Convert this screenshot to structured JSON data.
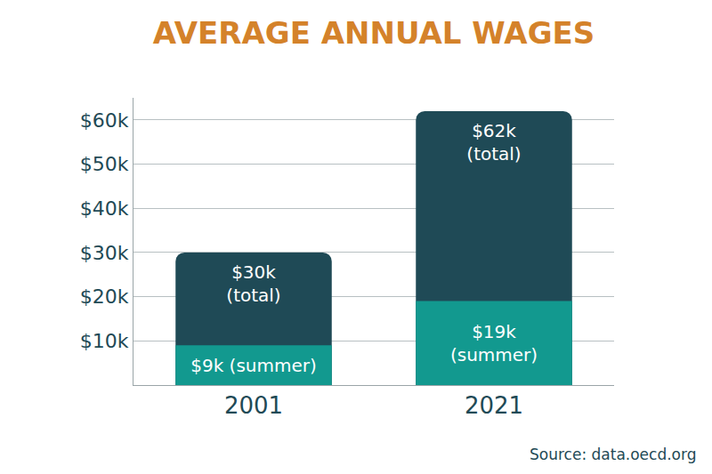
{
  "chart_data": {
    "type": "bar",
    "title": "AVERAGE ANNUAL WAGES",
    "categories": [
      "2001",
      "2021"
    ],
    "stacked": false,
    "series": [
      {
        "name": "total",
        "color": "#1f4a56",
        "values": [
          30,
          62
        ],
        "value_labels": [
          "$30k\n(total)",
          "$62k\n(total)"
        ]
      },
      {
        "name": "summer",
        "color": "#12998f",
        "values": [
          9,
          19
        ],
        "value_labels": [
          "$9k (summer)",
          "$19k\n(summer)"
        ]
      }
    ],
    "ylim": [
      0,
      65
    ],
    "yticks": [
      {
        "value": 10,
        "label": "$10k"
      },
      {
        "value": 20,
        "label": "$20k"
      },
      {
        "value": 30,
        "label": "$30k"
      },
      {
        "value": 40,
        "label": "$40k"
      },
      {
        "value": 50,
        "label": "$50k"
      },
      {
        "value": 60,
        "label": "$60k"
      }
    ],
    "grid": true,
    "data_labels": true,
    "annotations": [
      "Source: data.oecd.org"
    ]
  }
}
